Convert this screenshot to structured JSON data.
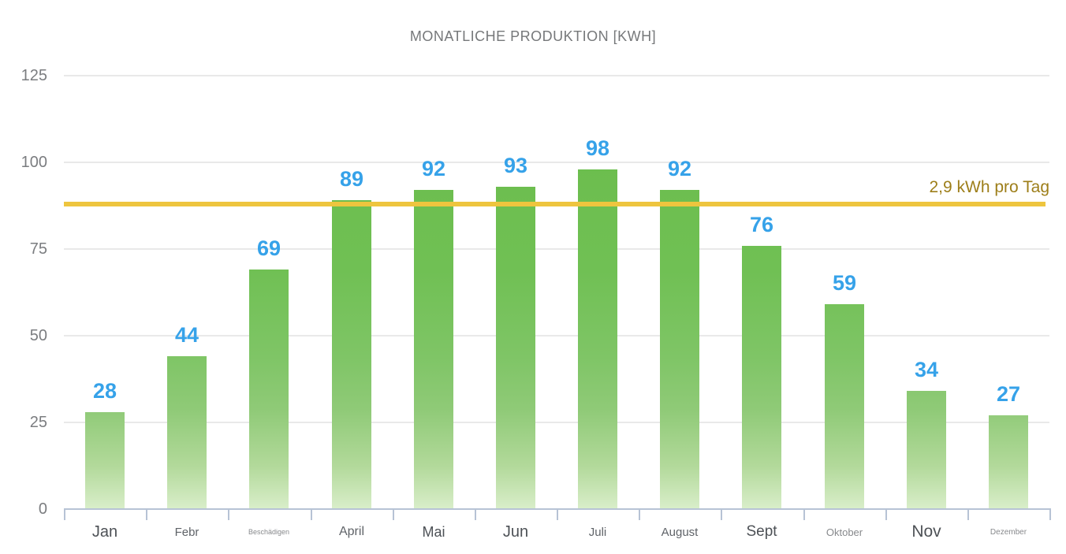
{
  "chart_data": {
    "type": "bar",
    "title": "MONATLICHE PRODUKTION [KWH]",
    "categories": [
      "Jan",
      "Febr",
      "Beschädigen",
      "April",
      "Mai",
      "Jun",
      "Juli",
      "August",
      "Sept",
      "Oktober",
      "Nov",
      "Dezember"
    ],
    "values": [
      28,
      44,
      69,
      89,
      92,
      93,
      98,
      92,
      76,
      59,
      34,
      27
    ],
    "y_ticks": [
      0,
      25,
      50,
      75,
      100,
      125
    ],
    "ylim": [
      0,
      125
    ],
    "grid": true,
    "legend": "none",
    "xlabel": "",
    "ylabel": "",
    "reference_line": {
      "value": 88,
      "label": "2,9 kWh pro Tag"
    },
    "category_label_sizes": [
      20,
      15,
      9,
      16,
      18,
      20,
      15,
      15,
      19,
      13,
      21,
      10
    ],
    "value_label_size": 27,
    "colors": {
      "bar_top": "#69bc49",
      "bar_bottom": "#d9eeca",
      "value_label": "#36a2e9",
      "reference_line": "#eec53e",
      "reference_label": "#9d7e19",
      "gridline": "#e9e9e9",
      "axis": "#b7c3d5",
      "title": "#76787a",
      "y_label": "#7b7d80",
      "month_label_dark": "#4d5156",
      "month_label_medium": "#5f6368",
      "month_label_light": "#87898c"
    }
  }
}
